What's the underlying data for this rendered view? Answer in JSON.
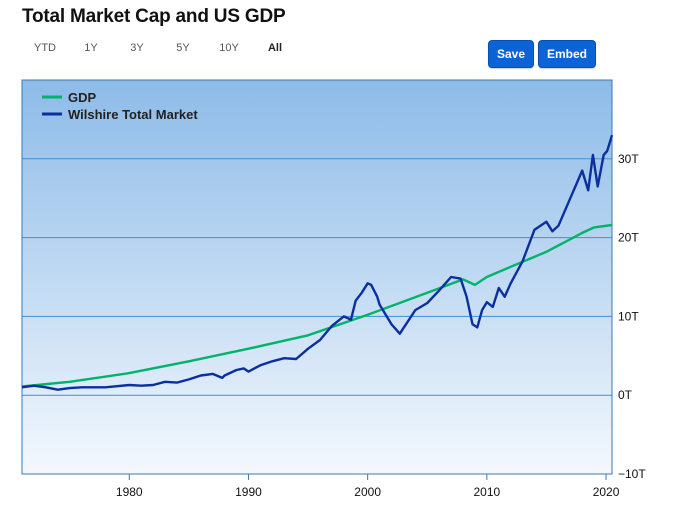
{
  "page_title": "Total Market Cap and US GDP",
  "ranges": [
    {
      "label": "YTD",
      "active": false
    },
    {
      "label": "1Y",
      "active": false
    },
    {
      "label": "3Y",
      "active": false
    },
    {
      "label": "5Y",
      "active": false
    },
    {
      "label": "10Y",
      "active": false
    },
    {
      "label": "All",
      "active": true
    }
  ],
  "buttons": {
    "save": "Save",
    "embed": "Embed"
  },
  "colors": {
    "gdp": "#00b36b",
    "market": "#0a2f9e",
    "bg_top": "#8dbbe8",
    "bg_bottom": "#f4f8fd",
    "grid": "#3f8fd6"
  },
  "chart_data": {
    "type": "line",
    "title": "Total Market Cap and US GDP",
    "xlabel": "",
    "ylabel": "",
    "xlim": [
      1971,
      2020.5
    ],
    "ylim": [
      -10,
      40
    ],
    "x_ticks": [
      1980,
      1990,
      2000,
      2010,
      2020
    ],
    "y_ticks": [
      {
        "value": 30,
        "label": "30T"
      },
      {
        "value": 20,
        "label": "20T"
      },
      {
        "value": 10,
        "label": "10T"
      },
      {
        "value": 0,
        "label": "0T"
      },
      {
        "value": -10,
        "label": "−10T"
      }
    ],
    "grid": true,
    "legend": "top-left",
    "series": [
      {
        "name": "GDP",
        "color": "#00b36b",
        "x": [
          1971,
          1975,
          1980,
          1985,
          1990,
          1995,
          2000,
          2005,
          2008,
          2009,
          2010,
          2012,
          2015,
          2018,
          2019,
          2020.5
        ],
        "y": [
          1.1,
          1.7,
          2.8,
          4.3,
          5.9,
          7.6,
          10.2,
          13.0,
          14.7,
          14.0,
          15.0,
          16.3,
          18.2,
          20.6,
          21.3,
          21.6
        ]
      },
      {
        "name": "Wilshire Total Market",
        "color": "#0a2f9e",
        "x": [
          1971,
          1972,
          1973,
          1974,
          1975,
          1976,
          1978,
          1980,
          1981,
          1982,
          1983,
          1984,
          1985,
          1986,
          1987,
          1987.8,
          1988,
          1989,
          1989.6,
          1990,
          1990.5,
          1991,
          1992,
          1993,
          1994,
          1995,
          1996,
          1997,
          1998,
          1998.6,
          1999,
          1999.5,
          2000,
          2000.3,
          2000.8,
          2001,
          2001.6,
          2002,
          2002.7,
          2003,
          2004,
          2005,
          2006,
          2007,
          2007.8,
          2008.3,
          2008.8,
          2009.2,
          2009.6,
          2010,
          2010.5,
          2011,
          2011.5,
          2012,
          2013,
          2014,
          2015,
          2015.5,
          2016,
          2017,
          2018,
          2018.5,
          2018.9,
          2019.3,
          2019.8,
          2020.1,
          2020.5
        ],
        "y": [
          1.0,
          1.2,
          1.0,
          0.7,
          0.9,
          1.0,
          1.0,
          1.3,
          1.2,
          1.3,
          1.7,
          1.6,
          2.0,
          2.5,
          2.7,
          2.2,
          2.5,
          3.2,
          3.4,
          3.0,
          3.4,
          3.8,
          4.3,
          4.7,
          4.6,
          5.9,
          7.0,
          8.8,
          10.0,
          9.6,
          12.0,
          13.0,
          14.2,
          14.0,
          12.5,
          11.5,
          10.0,
          9.0,
          7.8,
          8.5,
          10.8,
          11.7,
          13.3,
          15.0,
          14.8,
          12.5,
          9.0,
          8.6,
          10.8,
          11.8,
          11.2,
          13.6,
          12.5,
          14.2,
          17.0,
          21.0,
          22.0,
          20.8,
          21.5,
          25.0,
          28.5,
          26.0,
          30.5,
          26.5,
          30.5,
          31.0,
          33.0
        ]
      }
    ]
  }
}
